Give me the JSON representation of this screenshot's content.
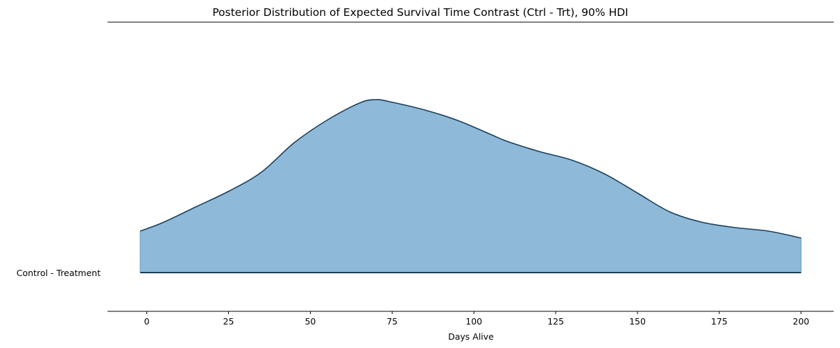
{
  "chart_data": {
    "type": "ridgeline-density",
    "title": "Posterior Distribution of Expected Survival Time Contrast (Ctrl - Trt), 90% HDI",
    "xlabel": "Days Alive",
    "ylabel": "",
    "xlim": [
      -12,
      210
    ],
    "x_ticks": [
      0,
      25,
      50,
      75,
      100,
      125,
      150,
      175,
      200
    ],
    "categories": [
      "Control - Treatment"
    ],
    "hdi_90": [
      -2,
      200
    ],
    "fill_color": "#8fb9d8",
    "edge_color": "#1a3d57",
    "series": [
      {
        "category": "Control - Treatment",
        "density_relative": {
          "x": [
            -2,
            5,
            15,
            25,
            35,
            45,
            55,
            65,
            70,
            75,
            85,
            95,
            105,
            110,
            120,
            130,
            140,
            150,
            160,
            170,
            180,
            190,
            200
          ],
          "y": [
            0.24,
            0.29,
            0.38,
            0.47,
            0.58,
            0.75,
            0.88,
            0.98,
            1.0,
            0.985,
            0.94,
            0.88,
            0.8,
            0.76,
            0.7,
            0.65,
            0.57,
            0.46,
            0.35,
            0.29,
            0.26,
            0.24,
            0.2
          ]
        }
      }
    ]
  }
}
